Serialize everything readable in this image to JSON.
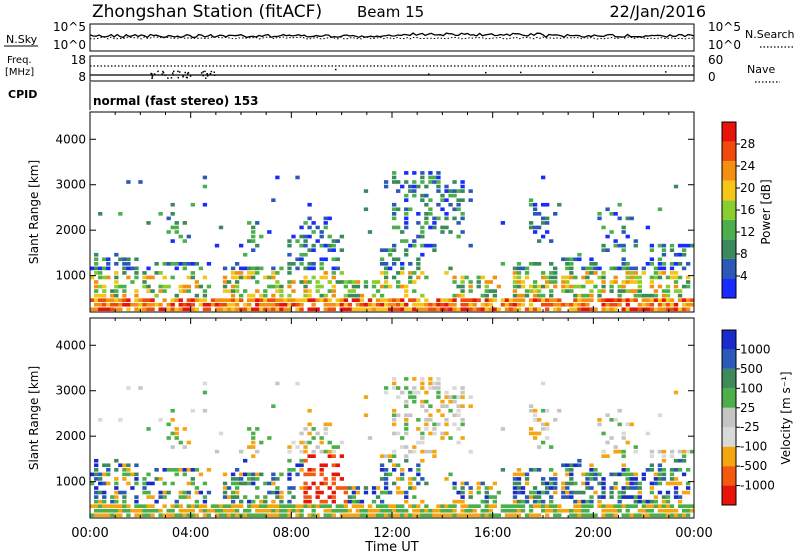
{
  "header": {
    "station": "Zhongshan Station (fitACF)",
    "beam": "Beam 15",
    "date": "22/Jan/2016"
  },
  "noise_panel": {
    "left_label": "N.Sky",
    "left_ticks": [
      "10^5",
      "10^0"
    ],
    "right_label": "N.Search",
    "right_ticks": [
      "10^5",
      "10^0"
    ]
  },
  "freq_panel": {
    "left_label_1": "Freq.",
    "left_label_2": "[MHz]",
    "left_ticks": [
      "18",
      "8"
    ],
    "right_label": "Nave",
    "right_ticks": [
      "60",
      "0"
    ]
  },
  "cpid": {
    "label": "CPID",
    "text": "normal (fast stereo) 153"
  },
  "colors": {
    "power": [
      "#1a2bff",
      "#2b59b8",
      "#3a8a5c",
      "#4bb04b",
      "#8acd2e",
      "#f5c518",
      "#f58f0f",
      "#f04a0c",
      "#e8140a"
    ],
    "velocity": [
      "#e8140a",
      "#f5590f",
      "#f5a50f",
      "#d9d9d9",
      "#c5c5c5",
      "#4bb04b",
      "#3f8a5a",
      "#2b59b8",
      "#1a2bcc"
    ]
  },
  "chart_data": [
    {
      "type": "heatmap",
      "name": "power",
      "ylabel": "Slant Range [km]",
      "yticks": [
        "1000",
        "2000",
        "3000",
        "4000"
      ],
      "ylim": [
        200,
        4600
      ],
      "colorbar_label": "Power [dB]",
      "colorbar_ticks": [
        "4",
        "8",
        "12",
        "16",
        "20",
        "24",
        "28"
      ],
      "colorbar_range": [
        0,
        32
      ]
    },
    {
      "type": "heatmap",
      "name": "velocity",
      "ylabel": "Slant Range [km]",
      "yticks": [
        "1000",
        "2000",
        "3000",
        "4000"
      ],
      "ylim": [
        200,
        4600
      ],
      "colorbar_label": "Velocity [m s⁻¹]",
      "colorbar_ticks": [
        "1000",
        "500",
        "100",
        "25",
        "-25",
        "-100",
        "-500",
        "-1000"
      ]
    }
  ],
  "xaxis": {
    "label": "Time UT",
    "ticks": [
      "00:00",
      "04:00",
      "08:00",
      "12:00",
      "16:00",
      "20:00",
      "00:00"
    ]
  }
}
